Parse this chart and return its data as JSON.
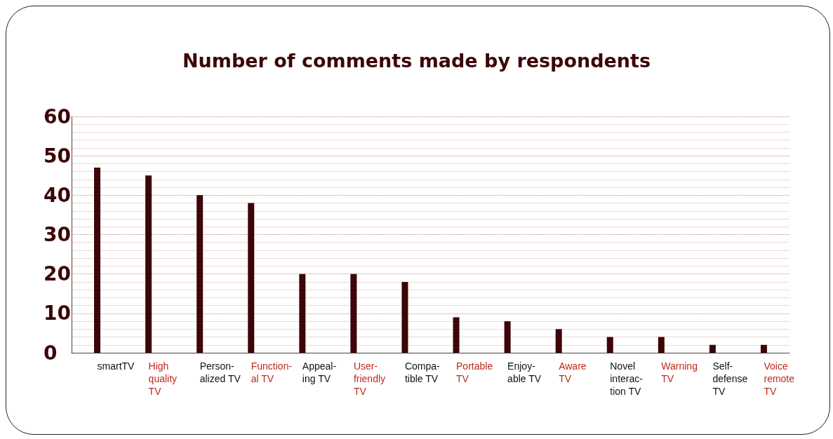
{
  "chart_data": {
    "type": "bar",
    "title": "Number of comments made by respondents",
    "categories": [
      "smartTV",
      "High\nquality\nTV",
      "Person-\nalized TV",
      "Function-\nal TV",
      "Appeal-\ning TV",
      "User-\nfriendly\nTV",
      "Compa-\ntible TV",
      "Portable\nTV",
      "Enjoy-\nable TV",
      "Aware\nTV",
      "Novel\ninterac-\ntion TV",
      "Warning\nTV",
      "Self-\ndefense\nTV",
      "Voice\nremote\nTV"
    ],
    "values": [
      47,
      45,
      40,
      38,
      20,
      20,
      18,
      9,
      8,
      6,
      4,
      4,
      2,
      2
    ],
    "color": "#3d0508",
    "ylim": [
      0,
      60
    ],
    "yticks": [
      0,
      10,
      20,
      30,
      40,
      50,
      60
    ],
    "grid": "y"
  }
}
